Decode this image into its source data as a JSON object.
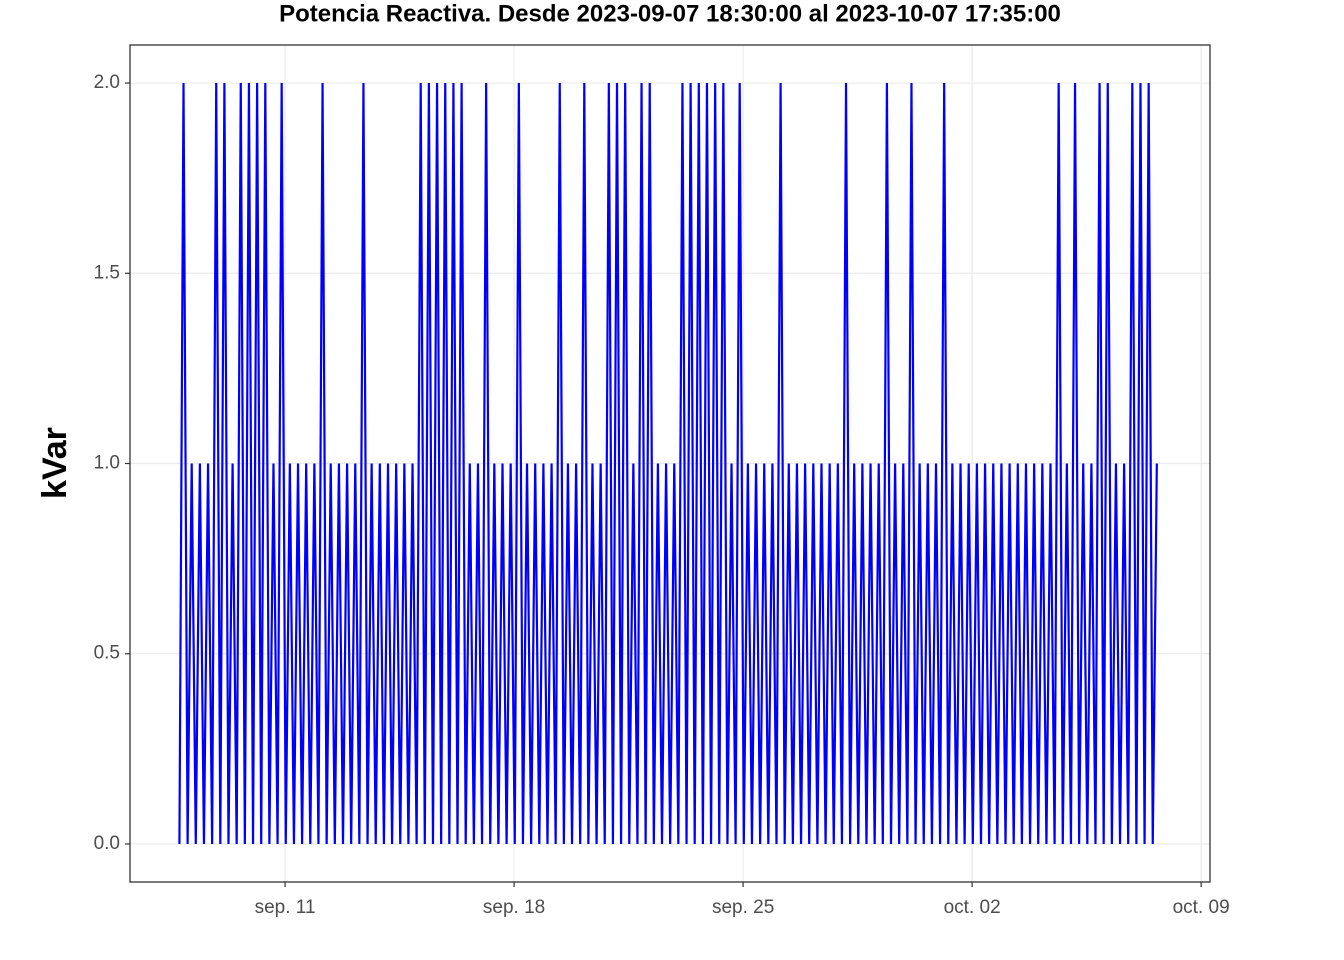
{
  "chart_data": {
    "type": "line",
    "title": "Potencia Reactiva. Desde  2023-09-07 18:30:00  al  2023-10-07 17:35:00",
    "y_label": "kVar",
    "xlim": [
      "2023-09-06T06:15",
      "2023-10-09T06:30"
    ],
    "xticks": [
      {
        "value": "2023-09-11T00:00",
        "label": "sep. 11"
      },
      {
        "value": "2023-09-18T00:00",
        "label": "sep. 18"
      },
      {
        "value": "2023-09-25T00:00",
        "label": "sep. 25"
      },
      {
        "value": "2023-10-02T00:00",
        "label": "oct. 02"
      },
      {
        "value": "2023-10-09T00:00",
        "label": "oct. 09"
      }
    ],
    "ylim": [
      -0.1,
      2.1
    ],
    "yticks": [
      {
        "value": 0,
        "label": "0.0"
      },
      {
        "value": 0.5,
        "label": "0.5"
      },
      {
        "value": 1,
        "label": "1.0"
      },
      {
        "value": 1.5,
        "label": "1.5"
      },
      {
        "value": 2,
        "label": "2.0"
      }
    ],
    "grid": true,
    "series": [
      {
        "name": "kVar",
        "color": "#0000ff",
        "x": [
          "2023-09-07T18:30",
          "2023-09-07T21:30",
          "2023-09-08T00:30",
          "2023-09-08T03:30",
          "2023-09-08T06:30",
          "2023-09-08T09:30",
          "2023-09-08T12:30",
          "2023-09-08T15:30",
          "2023-09-08T18:30",
          "2023-09-08T21:30",
          "2023-09-09T00:30",
          "2023-09-09T03:30",
          "2023-09-09T06:30",
          "2023-09-09T09:30",
          "2023-09-09T12:30",
          "2023-09-09T15:30",
          "2023-09-09T18:30",
          "2023-09-09T21:30",
          "2023-09-10T00:30",
          "2023-09-10T03:30",
          "2023-09-10T06:30",
          "2023-09-10T09:30",
          "2023-09-10T12:30",
          "2023-09-10T15:30",
          "2023-09-10T18:30",
          "2023-09-10T21:30",
          "2023-09-11T00:30",
          "2023-09-11T03:30",
          "2023-09-11T06:30",
          "2023-09-11T09:30",
          "2023-09-11T12:30",
          "2023-09-11T15:30",
          "2023-09-11T18:30",
          "2023-09-11T21:30",
          "2023-09-12T00:30",
          "2023-09-12T03:30",
          "2023-09-12T06:30",
          "2023-09-12T09:30",
          "2023-09-12T12:30",
          "2023-09-12T15:30",
          "2023-09-12T18:30",
          "2023-09-12T21:30",
          "2023-09-13T00:30",
          "2023-09-13T03:30",
          "2023-09-13T06:30",
          "2023-09-13T09:30",
          "2023-09-13T12:30",
          "2023-09-13T15:30",
          "2023-09-13T18:30",
          "2023-09-13T21:30",
          "2023-09-14T00:30",
          "2023-09-14T03:30",
          "2023-09-14T06:30",
          "2023-09-14T09:30",
          "2023-09-14T12:30",
          "2023-09-14T15:30",
          "2023-09-14T18:30",
          "2023-09-14T21:30",
          "2023-09-15T00:30",
          "2023-09-15T03:30",
          "2023-09-15T06:30",
          "2023-09-15T09:30",
          "2023-09-15T12:30",
          "2023-09-15T15:30",
          "2023-09-15T18:30",
          "2023-09-15T21:30",
          "2023-09-16T00:30",
          "2023-09-16T03:30",
          "2023-09-16T06:30",
          "2023-09-16T09:30",
          "2023-09-16T12:30",
          "2023-09-16T15:30",
          "2023-09-16T18:30",
          "2023-09-16T21:30",
          "2023-09-17T00:30",
          "2023-09-17T03:30",
          "2023-09-17T06:30",
          "2023-09-17T09:30",
          "2023-09-17T12:30",
          "2023-09-17T15:30",
          "2023-09-17T18:30",
          "2023-09-17T21:30",
          "2023-09-18T00:30",
          "2023-09-18T03:30",
          "2023-09-18T06:30",
          "2023-09-18T09:30",
          "2023-09-18T12:30",
          "2023-09-18T15:30",
          "2023-09-18T18:30",
          "2023-09-18T21:30",
          "2023-09-19T00:30",
          "2023-09-19T03:30",
          "2023-09-19T06:30",
          "2023-09-19T09:30",
          "2023-09-19T12:30",
          "2023-09-19T15:30",
          "2023-09-19T18:30",
          "2023-09-19T21:30",
          "2023-09-20T00:30",
          "2023-09-20T03:30",
          "2023-09-20T06:30",
          "2023-09-20T09:30",
          "2023-09-20T12:30",
          "2023-09-20T15:30",
          "2023-09-20T18:30",
          "2023-09-20T21:30",
          "2023-09-21T00:30",
          "2023-09-21T03:30",
          "2023-09-21T06:30",
          "2023-09-21T09:30",
          "2023-09-21T12:30",
          "2023-09-21T15:30",
          "2023-09-21T18:30",
          "2023-09-21T21:30",
          "2023-09-22T00:30",
          "2023-09-22T03:30",
          "2023-09-22T06:30",
          "2023-09-22T09:30",
          "2023-09-22T12:30",
          "2023-09-22T15:30",
          "2023-09-22T18:30",
          "2023-09-22T21:30",
          "2023-09-23T00:30",
          "2023-09-23T03:30",
          "2023-09-23T06:30",
          "2023-09-23T09:30",
          "2023-09-23T12:30",
          "2023-09-23T15:30",
          "2023-09-23T18:30",
          "2023-09-23T21:30",
          "2023-09-24T00:30",
          "2023-09-24T03:30",
          "2023-09-24T06:30",
          "2023-09-24T09:30",
          "2023-09-24T12:30",
          "2023-09-24T15:30",
          "2023-09-24T18:30",
          "2023-09-24T21:30",
          "2023-09-25T00:30",
          "2023-09-25T03:30",
          "2023-09-25T06:30",
          "2023-09-25T09:30",
          "2023-09-25T12:30",
          "2023-09-25T15:30",
          "2023-09-25T18:30",
          "2023-09-25T21:30",
          "2023-09-26T00:30",
          "2023-09-26T03:30",
          "2023-09-26T06:30",
          "2023-09-26T09:30",
          "2023-09-26T12:30",
          "2023-09-26T15:30",
          "2023-09-26T18:30",
          "2023-09-26T21:30",
          "2023-09-27T00:30",
          "2023-09-27T03:30",
          "2023-09-27T06:30",
          "2023-09-27T09:30",
          "2023-09-27T12:30",
          "2023-09-27T15:30",
          "2023-09-27T18:30",
          "2023-09-27T21:30",
          "2023-09-28T00:30",
          "2023-09-28T03:30",
          "2023-09-28T06:30",
          "2023-09-28T09:30",
          "2023-09-28T12:30",
          "2023-09-28T15:30",
          "2023-09-28T18:30",
          "2023-09-28T21:30",
          "2023-09-29T00:30",
          "2023-09-29T03:30",
          "2023-09-29T06:30",
          "2023-09-29T09:30",
          "2023-09-29T12:30",
          "2023-09-29T15:30",
          "2023-09-29T18:30",
          "2023-09-29T21:30",
          "2023-09-30T00:30",
          "2023-09-30T03:30",
          "2023-09-30T06:30",
          "2023-09-30T09:30",
          "2023-09-30T12:30",
          "2023-09-30T15:30",
          "2023-09-30T18:30",
          "2023-09-30T21:30",
          "2023-10-01T00:30",
          "2023-10-01T03:30",
          "2023-10-01T06:30",
          "2023-10-01T09:30",
          "2023-10-01T12:30",
          "2023-10-01T15:30",
          "2023-10-01T18:30",
          "2023-10-01T21:30",
          "2023-10-02T00:30",
          "2023-10-02T03:30",
          "2023-10-02T06:30",
          "2023-10-02T09:30",
          "2023-10-02T12:30",
          "2023-10-02T15:30",
          "2023-10-02T18:30",
          "2023-10-02T21:30",
          "2023-10-03T00:30",
          "2023-10-03T03:30",
          "2023-10-03T06:30",
          "2023-10-03T09:30",
          "2023-10-03T12:30",
          "2023-10-03T15:30",
          "2023-10-03T18:30",
          "2023-10-03T21:30",
          "2023-10-04T00:30",
          "2023-10-04T03:30",
          "2023-10-04T06:30",
          "2023-10-04T09:30",
          "2023-10-04T12:30",
          "2023-10-04T15:30",
          "2023-10-04T18:30",
          "2023-10-04T21:30",
          "2023-10-05T00:30",
          "2023-10-05T03:30",
          "2023-10-05T06:30",
          "2023-10-05T09:30",
          "2023-10-05T12:30",
          "2023-10-05T15:30",
          "2023-10-05T18:30",
          "2023-10-05T21:30",
          "2023-10-06T00:30",
          "2023-10-06T03:30",
          "2023-10-06T06:30",
          "2023-10-06T09:30",
          "2023-10-06T12:30",
          "2023-10-06T15:30",
          "2023-10-06T18:30",
          "2023-10-06T21:30",
          "2023-10-07T00:30",
          "2023-10-07T03:30",
          "2023-10-07T06:30",
          "2023-10-07T09:30",
          "2023-10-07T12:30",
          "2023-10-07T15:30"
        ],
        "values": [
          0,
          2,
          0,
          1,
          0,
          1,
          0,
          1,
          0,
          2,
          0,
          2,
          0,
          1,
          0,
          2,
          0,
          2,
          0,
          2,
          0,
          2,
          0,
          1,
          0,
          2,
          0,
          1,
          0,
          1,
          0,
          1,
          0,
          1,
          0,
          2,
          0,
          1,
          0,
          1,
          0,
          1,
          0,
          1,
          0,
          2,
          0,
          1,
          0,
          1,
          0,
          1,
          0,
          1,
          0,
          1,
          0,
          1,
          0,
          2,
          0,
          2,
          0,
          2,
          0,
          2,
          0,
          2,
          0,
          2,
          0,
          1,
          0,
          1,
          0,
          2,
          0,
          1,
          0,
          1,
          0,
          1,
          0,
          2,
          0,
          1,
          0,
          1,
          0,
          1,
          0,
          1,
          0,
          2,
          0,
          1,
          0,
          1,
          0,
          2,
          0,
          1,
          0,
          1,
          0,
          2,
          0,
          2,
          0,
          2,
          0,
          1,
          0,
          2,
          0,
          2,
          0,
          1,
          0,
          1,
          0,
          1,
          0,
          2,
          0,
          2,
          0,
          2,
          0,
          2,
          0,
          2,
          0,
          2,
          0,
          1,
          0,
          2,
          0,
          1,
          0,
          1,
          0,
          1,
          0,
          1,
          0,
          2,
          0,
          1,
          0,
          1,
          0,
          1,
          0,
          1,
          0,
          1,
          0,
          1,
          0,
          1,
          0,
          2,
          0,
          1,
          0,
          1,
          0,
          1,
          0,
          1,
          0,
          2,
          0,
          1,
          0,
          1,
          0,
          2,
          0,
          1,
          0,
          1,
          0,
          1,
          0,
          2,
          0,
          1,
          0,
          1,
          0,
          1,
          0,
          1,
          0,
          1,
          0,
          1,
          0,
          1,
          0,
          1,
          0,
          1,
          0,
          1,
          0,
          1,
          0,
          1,
          0,
          1,
          0,
          2,
          0,
          1,
          0,
          2,
          0,
          1,
          0,
          1,
          0,
          2,
          0,
          2,
          0,
          1,
          0,
          1,
          0,
          2,
          0,
          2,
          0,
          2,
          0,
          1
        ]
      }
    ]
  }
}
